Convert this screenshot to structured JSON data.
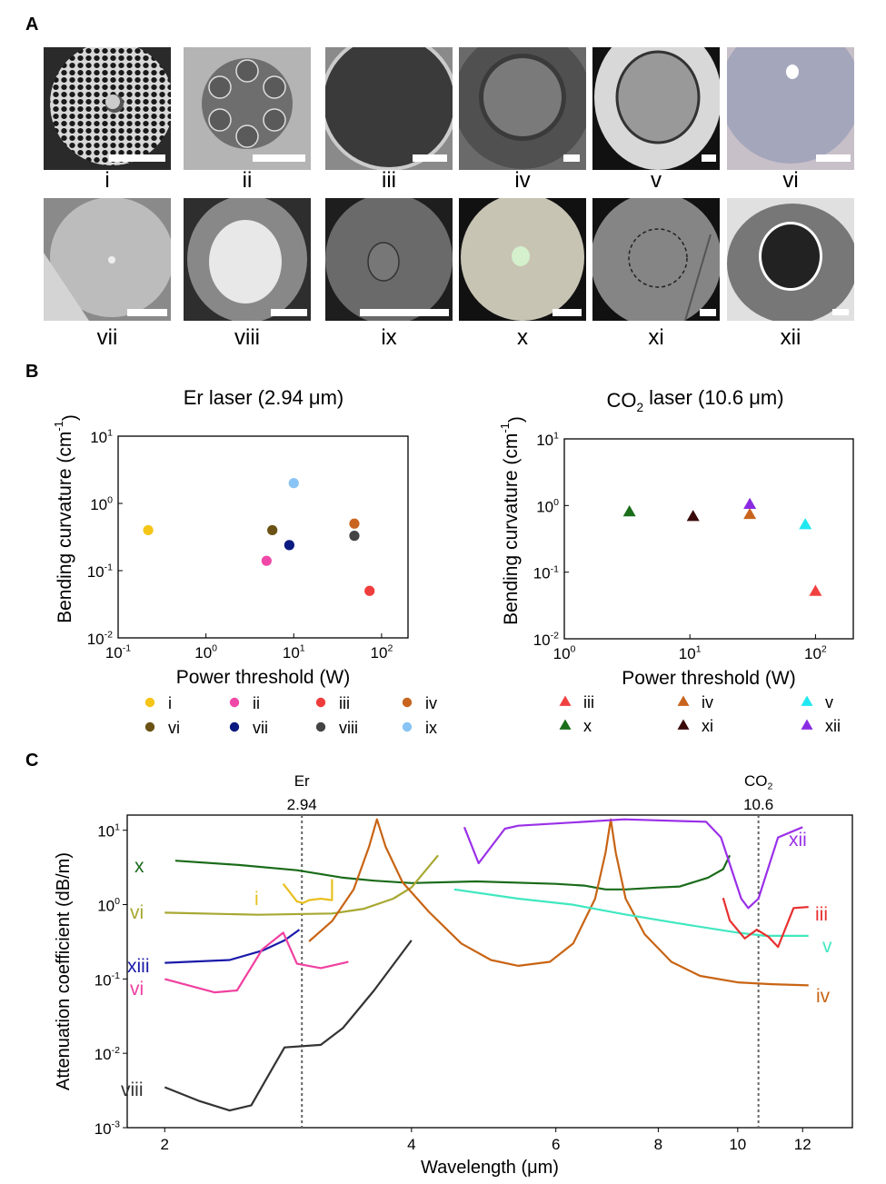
{
  "panels": {
    "a": "A",
    "b": "B",
    "c": "C"
  },
  "panel_a": {
    "labels": [
      "i",
      "ii",
      "iii",
      "iv",
      "v",
      "vi",
      "vii",
      "viii",
      "ix",
      "x",
      "xi",
      "xii"
    ]
  },
  "chart_data": [
    {
      "type": "scatter",
      "title": "Er laser (2.94 μm)",
      "xlabel": "Power threshold (W)",
      "ylabel": "Bending curvature (cm-1)",
      "ylabel_parts": [
        "Bending curvature (cm",
        "-1",
        ")"
      ],
      "xscale": "log",
      "yscale": "log",
      "xlim": [
        0.1,
        200
      ],
      "ylim": [
        0.01,
        10
      ],
      "xticks": [
        {
          "base": "10",
          "exp": "-1",
          "value": 0.1
        },
        {
          "base": "10",
          "exp": "0",
          "value": 1
        },
        {
          "base": "10",
          "exp": "1",
          "value": 10
        },
        {
          "base": "10",
          "exp": "2",
          "value": 100
        }
      ],
      "yticks": [
        {
          "base": "10",
          "exp": "-2",
          "value": 0.01
        },
        {
          "base": "10",
          "exp": "-1",
          "value": 0.1
        },
        {
          "base": "10",
          "exp": "0",
          "value": 1
        },
        {
          "base": "10",
          "exp": "1",
          "value": 10
        }
      ],
      "marker": "circle",
      "legend_placement": "bottom",
      "series": [
        {
          "name": "i",
          "color": "#f5c518",
          "x": 0.22,
          "y": 0.4
        },
        {
          "name": "ii",
          "color": "#f048a8",
          "x": 4.9,
          "y": 0.14
        },
        {
          "name": "iii",
          "color": "#f03c3c",
          "x": 73,
          "y": 0.05
        },
        {
          "name": "iv",
          "color": "#c8641e",
          "x": 49,
          "y": 0.5
        },
        {
          "name": "vi",
          "color": "#6b5214",
          "x": 5.7,
          "y": 0.4
        },
        {
          "name": "vii",
          "color": "#0a1a80",
          "x": 8.9,
          "y": 0.24
        },
        {
          "name": "viii",
          "color": "#444444",
          "x": 49,
          "y": 0.33
        },
        {
          "name": "ix",
          "color": "#88c4f5",
          "x": 10,
          "y": 2.0
        }
      ]
    },
    {
      "type": "scatter",
      "title_parts": [
        "CO",
        "2",
        " laser (10.6 μm)"
      ],
      "xlabel": "Power threshold (W)",
      "ylabel_parts": [
        "Bending curvature (cm",
        "-1",
        ")"
      ],
      "xscale": "log",
      "yscale": "log",
      "xlim": [
        1,
        200
      ],
      "ylim": [
        0.01,
        10
      ],
      "xticks": [
        {
          "base": "10",
          "exp": "0",
          "value": 1
        },
        {
          "base": "10",
          "exp": "1",
          "value": 10
        },
        {
          "base": "10",
          "exp": "2",
          "value": 100
        }
      ],
      "yticks": [
        {
          "base": "10",
          "exp": "-2",
          "value": 0.01
        },
        {
          "base": "10",
          "exp": "-1",
          "value": 0.1
        },
        {
          "base": "10",
          "exp": "0",
          "value": 1
        },
        {
          "base": "10",
          "exp": "1",
          "value": 10
        }
      ],
      "marker": "triangle",
      "legend_placement": "bottom",
      "series": [
        {
          "name": "iii",
          "color": "#f04040",
          "x": 100,
          "y": 0.052
        },
        {
          "name": "iv",
          "color": "#c8641e",
          "x": 30,
          "y": 0.74
        },
        {
          "name": "v",
          "color": "#20e8f0",
          "x": 83,
          "y": 0.52
        },
        {
          "name": "x",
          "color": "#1a6e1a",
          "x": 3.3,
          "y": 0.81
        },
        {
          "name": "xi",
          "color": "#3a0a0a",
          "x": 10.6,
          "y": 0.69
        },
        {
          "name": "xii",
          "color": "#8a2be2",
          "x": 30,
          "y": 1.05
        }
      ]
    },
    {
      "type": "line",
      "xlabel": "Wavelength (μm)",
      "ylabel": "Attenuation coefficient (dB/m)",
      "xscale": "log",
      "yscale": "log",
      "xlim": [
        1.8,
        13.8
      ],
      "ylim": [
        0.001,
        16
      ],
      "xticks": [
        2,
        4,
        6,
        8,
        10,
        12
      ],
      "yticks": [
        {
          "base": "10",
          "exp": "-3",
          "value": 0.001
        },
        {
          "base": "10",
          "exp": "-2",
          "value": 0.01
        },
        {
          "base": "10",
          "exp": "-1",
          "value": 0.1
        },
        {
          "base": "10",
          "exp": "0",
          "value": 1
        },
        {
          "base": "10",
          "exp": "1",
          "value": 10
        }
      ],
      "reference_lines": [
        {
          "value": 2.94,
          "label_top": "Er",
          "label_bottom": "2.94"
        },
        {
          "value": 10.6,
          "label_top_parts": [
            "CO",
            "2"
          ],
          "label_bottom": "10.6"
        }
      ],
      "series": [
        {
          "name": "x",
          "color": "#1a6b1a",
          "points": [
            [
              2.06,
              3.9
            ],
            [
              2.47,
              3.4
            ],
            [
              2.9,
              2.9
            ],
            [
              3.3,
              2.3
            ],
            [
              3.6,
              2.1
            ],
            [
              4.0,
              1.95
            ],
            [
              4.8,
              2.05
            ],
            [
              6.0,
              1.9
            ],
            [
              6.5,
              1.8
            ],
            [
              6.9,
              1.6
            ],
            [
              7.3,
              1.6
            ],
            [
              8.0,
              1.7
            ],
            [
              8.5,
              1.75
            ],
            [
              9.2,
              2.3
            ],
            [
              9.6,
              3.0
            ],
            [
              9.78,
              4.6
            ]
          ]
        },
        {
          "name": "vi",
          "color": "#a8a832",
          "points": [
            [
              2.0,
              0.78
            ],
            [
              2.6,
              0.73
            ],
            [
              3.2,
              0.76
            ],
            [
              3.5,
              0.88
            ],
            [
              3.8,
              1.2
            ],
            [
              4.0,
              1.7
            ],
            [
              4.31,
              4.6
            ]
          ]
        },
        {
          "name": "i",
          "color": "#e8c020",
          "points": [
            [
              2.79,
              1.9
            ],
            [
              2.9,
              1.1
            ],
            [
              2.95,
              1.05
            ],
            [
              3.0,
              1.15
            ],
            [
              3.1,
              1.2
            ],
            [
              3.2,
              1.15
            ],
            [
              3.2,
              2.2
            ]
          ]
        },
        {
          "name": "xiii",
          "color": "#1a1aaa",
          "points": [
            [
              2.0,
              0.165
            ],
            [
              2.4,
              0.18
            ],
            [
              2.63,
              0.24
            ],
            [
              2.8,
              0.33
            ],
            [
              2.92,
              0.46
            ]
          ]
        },
        {
          "name": "vi",
          "color": "#f040a0",
          "points": [
            [
              2.0,
              0.1
            ],
            [
              2.3,
              0.066
            ],
            [
              2.45,
              0.07
            ],
            [
              2.63,
              0.25
            ],
            [
              2.79,
              0.42
            ],
            [
              2.9,
              0.16
            ],
            [
              3.1,
              0.14
            ],
            [
              3.35,
              0.17
            ]
          ]
        },
        {
          "name": "viii",
          "color": "#333333",
          "points": [
            [
              2.0,
              0.0035
            ],
            [
              2.2,
              0.0023
            ],
            [
              2.4,
              0.0017
            ],
            [
              2.55,
              0.002
            ],
            [
              2.7,
              0.006
            ],
            [
              2.8,
              0.012
            ],
            [
              3.1,
              0.013
            ],
            [
              3.3,
              0.022
            ],
            [
              3.6,
              0.07
            ],
            [
              4.0,
              0.33
            ]
          ]
        },
        {
          "name": "iv",
          "color": "#c86414",
          "points": [
            [
              3.0,
              0.32
            ],
            [
              3.2,
              0.6
            ],
            [
              3.4,
              1.6
            ],
            [
              3.55,
              6
            ],
            [
              3.63,
              14
            ],
            [
              3.72,
              6
            ],
            [
              3.9,
              2.0
            ],
            [
              4.2,
              0.8
            ],
            [
              4.6,
              0.3
            ],
            [
              5.0,
              0.18
            ],
            [
              5.4,
              0.15
            ],
            [
              5.9,
              0.17
            ],
            [
              6.3,
              0.3
            ],
            [
              6.7,
              1.2
            ],
            [
              6.9,
              5
            ],
            [
              7.0,
              14
            ],
            [
              7.1,
              5
            ],
            [
              7.3,
              1.2
            ],
            [
              7.7,
              0.4
            ],
            [
              8.3,
              0.17
            ],
            [
              9.0,
              0.11
            ],
            [
              10,
              0.09
            ],
            [
              11,
              0.085
            ],
            [
              12.2,
              0.082
            ]
          ]
        },
        {
          "name": "xii",
          "color": "#9a30e8",
          "points": [
            [
              4.64,
              11
            ],
            [
              4.83,
              3.6
            ],
            [
              5.2,
              10.5
            ],
            [
              5.4,
              11.5
            ],
            [
              6.5,
              13
            ],
            [
              7.27,
              14
            ],
            [
              9.15,
              13
            ],
            [
              9.54,
              8
            ],
            [
              10.1,
              1.2
            ],
            [
              10.3,
              0.9
            ],
            [
              10.6,
              1.2
            ],
            [
              11.2,
              8
            ],
            [
              12.0,
              11
            ]
          ]
        },
        {
          "name": "v",
          "color": "#40e8c0",
          "points": [
            [
              4.51,
              1.6
            ],
            [
              5.4,
              1.2
            ],
            [
              6.28,
              1.0
            ],
            [
              7.27,
              0.74
            ],
            [
              8.46,
              0.56
            ],
            [
              10.0,
              0.42
            ],
            [
              10.8,
              0.38
            ],
            [
              12.2,
              0.38
            ]
          ]
        },
        {
          "name": "iii",
          "color": "#e83030",
          "points": [
            [
              9.6,
              1.23
            ],
            [
              9.78,
              0.61
            ],
            [
              10.2,
              0.35
            ],
            [
              10.55,
              0.46
            ],
            [
              10.9,
              0.37
            ],
            [
              11.2,
              0.27
            ],
            [
              11.7,
              0.9
            ],
            [
              12.2,
              0.93
            ]
          ]
        }
      ]
    }
  ]
}
